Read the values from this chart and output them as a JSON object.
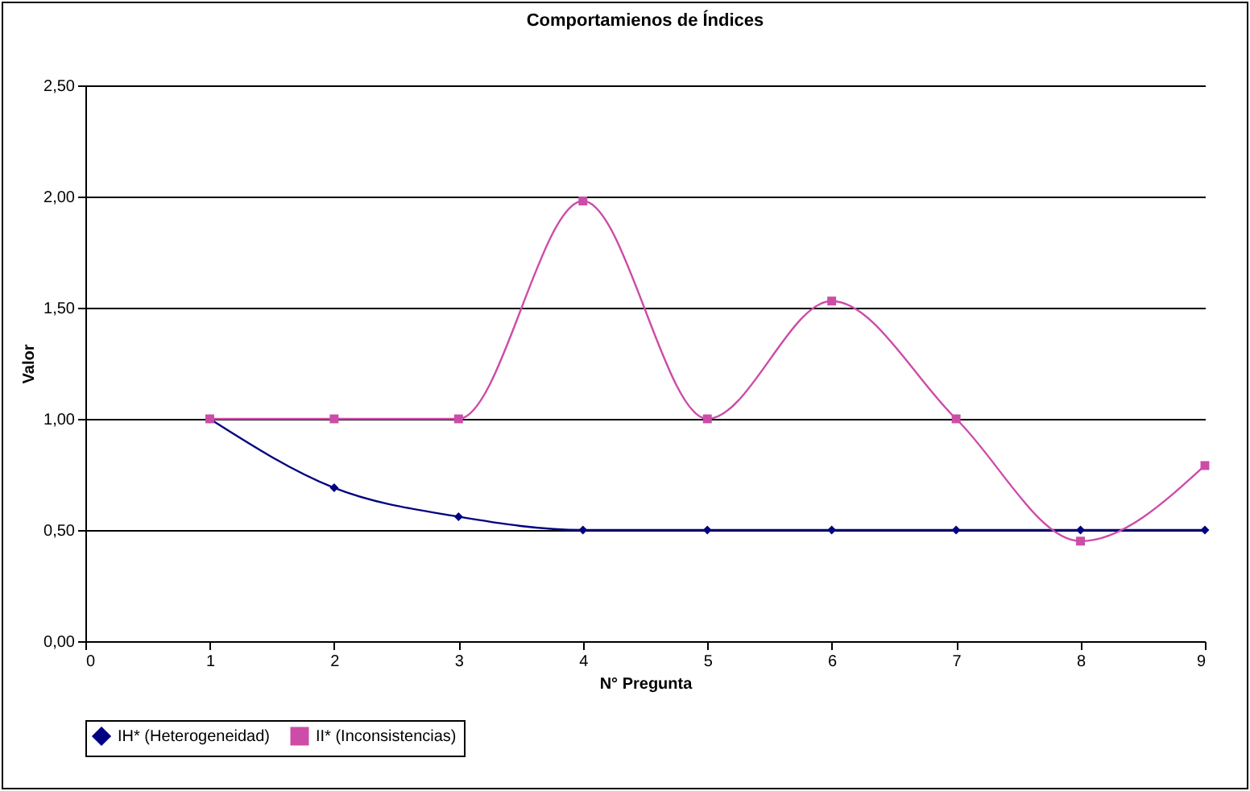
{
  "chart_data": {
    "type": "line",
    "title": "Comportamienos de Índices",
    "xlabel": "N° Pregunta",
    "ylabel": "Valor",
    "x": [
      1,
      2,
      3,
      4,
      5,
      6,
      7,
      8,
      9
    ],
    "series": [
      {
        "name": "IH* (Heterogeneidad)",
        "color": "#000080",
        "marker": "diamond",
        "values": [
          1.0,
          0.69,
          0.56,
          0.5,
          0.5,
          0.5,
          0.5,
          0.5,
          0.5
        ]
      },
      {
        "name": "II* (Inconsistencias)",
        "color": "#cc4ca8",
        "marker": "square",
        "values": [
          1.0,
          1.0,
          1.0,
          1.98,
          1.0,
          1.53,
          1.0,
          0.45,
          0.79
        ]
      }
    ],
    "xlim": [
      0,
      9
    ],
    "xticks": [
      0,
      1,
      2,
      3,
      4,
      5,
      6,
      7,
      8,
      9
    ],
    "ylim": [
      0,
      2.5
    ],
    "yticks": [
      {
        "value": 0,
        "label": "0,00"
      },
      {
        "value": 0.5,
        "label": "0,50"
      },
      {
        "value": 1,
        "label": "1,00"
      },
      {
        "value": 1.5,
        "label": "1,50"
      },
      {
        "value": 2,
        "label": "2,00"
      },
      {
        "value": 2.5,
        "label": "2,50"
      }
    ],
    "grid": "y",
    "legend": "bottom",
    "line_style": "solid"
  }
}
